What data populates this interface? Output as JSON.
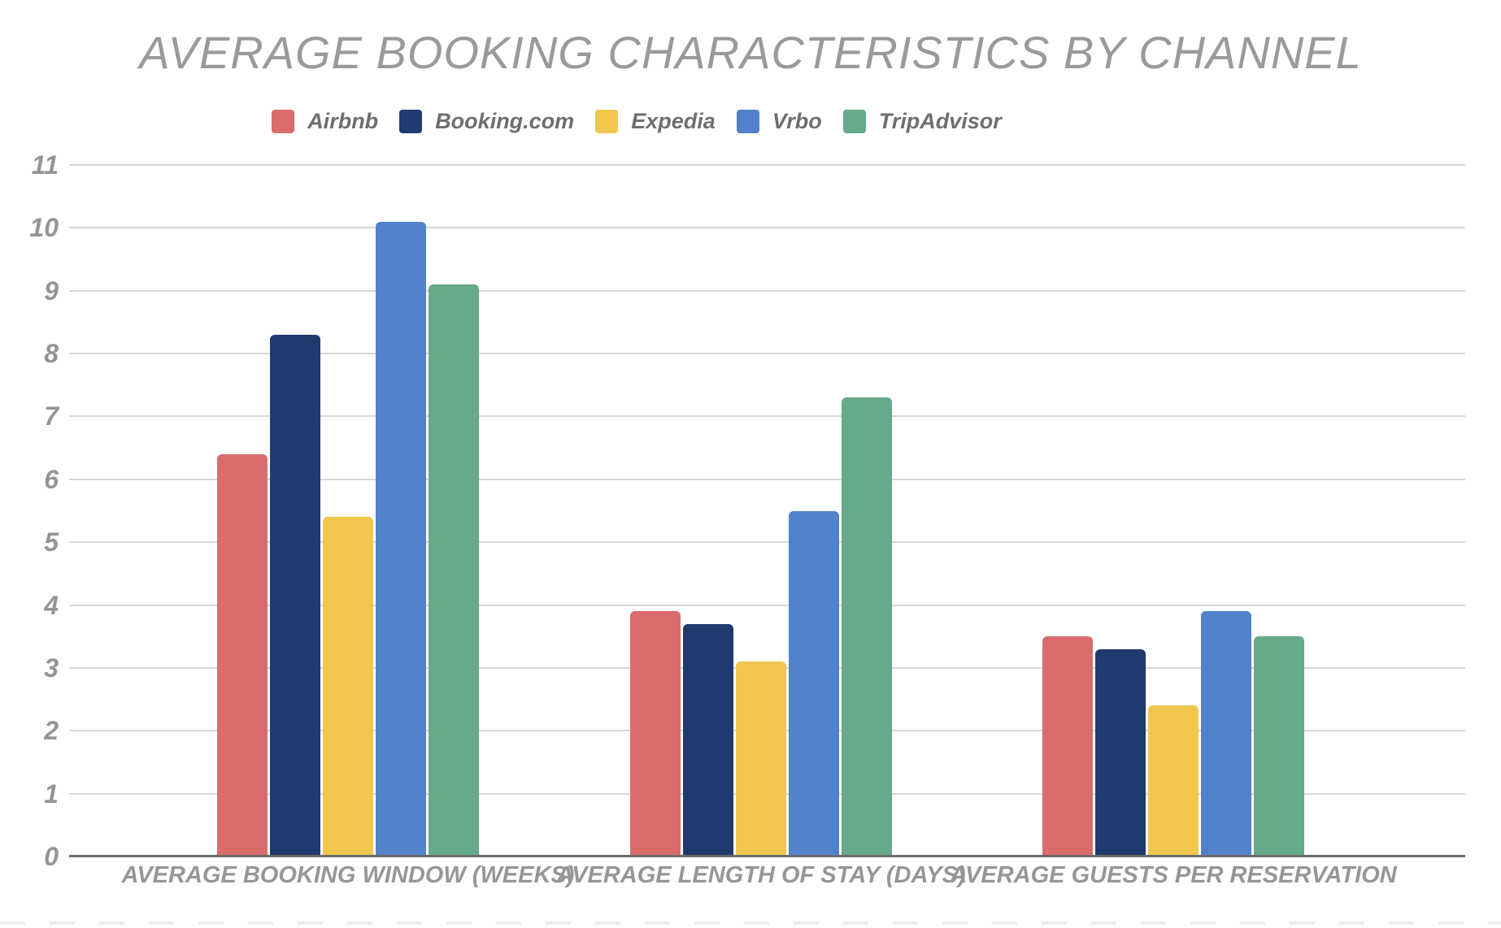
{
  "chart_data": {
    "type": "bar",
    "title": "AVERAGE BOOKING CHARACTERISTICS BY CHANNEL",
    "categories": [
      "AVERAGE BOOKING WINDOW (WEEKS)",
      "AVERAGE LENGTH OF STAY (DAYS)",
      "AVERAGE GUESTS PER RESERVATION"
    ],
    "series": [
      {
        "name": "Airbnb",
        "color": "#DB6C6C",
        "values": [
          6.4,
          3.9,
          3.5
        ]
      },
      {
        "name": "Booking.com",
        "color": "#1E3A6E",
        "values": [
          8.3,
          3.7,
          3.3
        ]
      },
      {
        "name": "Expedia",
        "color": "#F0C64F",
        "values": [
          5.4,
          3.1,
          2.4
        ]
      },
      {
        "name": "Vrbo",
        "color": "#5282CC",
        "values": [
          10.1,
          5.5,
          3.9
        ]
      },
      {
        "name": "TripAdvisor",
        "color": "#66A98B",
        "values": [
          9.1,
          7.3,
          3.5
        ]
      }
    ],
    "xlabel": "",
    "ylabel": "",
    "ylim": [
      0,
      11
    ],
    "ytick_step": 1,
    "yticks": [
      0,
      1,
      2,
      3,
      4,
      5,
      6,
      7,
      8,
      9,
      10,
      11
    ],
    "grid": true,
    "legend_position": "top"
  },
  "colors": {
    "background": "#ffffff",
    "title_text": "#9a9a9a",
    "legend_text": "#6e6e6e",
    "tick_label_text": "#949494",
    "category_label_text": "#969696",
    "gridline": "#d8d8d8",
    "axis_line": "#6a6a6a",
    "bottom_dash": "#ededed"
  }
}
